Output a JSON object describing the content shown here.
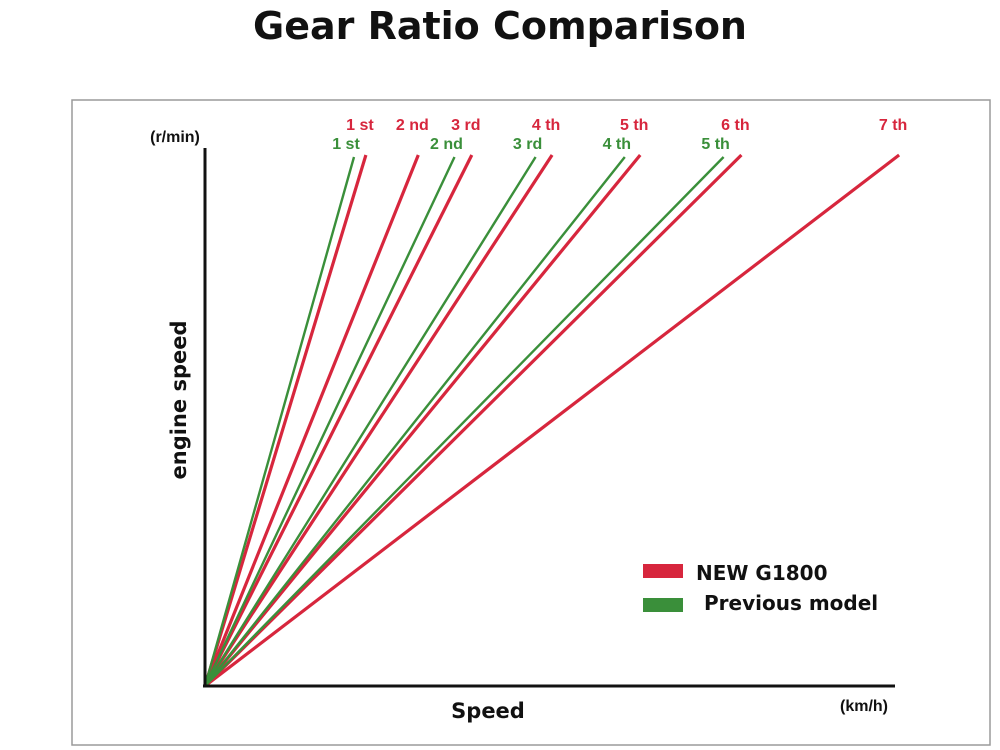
{
  "chart_data": {
    "type": "line",
    "title": "Gear Ratio Comparison",
    "xlabel": "Speed",
    "ylabel": "engine speed",
    "x_unit": "(km/h)",
    "y_unit": "(r/min)",
    "grid": false,
    "legend_position": "bottom-right",
    "series": [
      {
        "name": "NEW G1800",
        "color": "#d7263d",
        "gears": [
          "1 st",
          "2 nd",
          "3 rd",
          "4 th",
          "5 th",
          "6 th",
          "7 th"
        ],
        "slopes": [
          3.3,
          2.49,
          1.99,
          1.53,
          1.22,
          0.99,
          0.765
        ]
      },
      {
        "name": "Previous model",
        "color": "#3a8f3a",
        "gears": [
          "1 st",
          "2 nd",
          "3 rd",
          "4 th",
          "5 th"
        ],
        "slopes": [
          3.55,
          2.12,
          1.6,
          1.26,
          1.02
        ]
      }
    ]
  }
}
